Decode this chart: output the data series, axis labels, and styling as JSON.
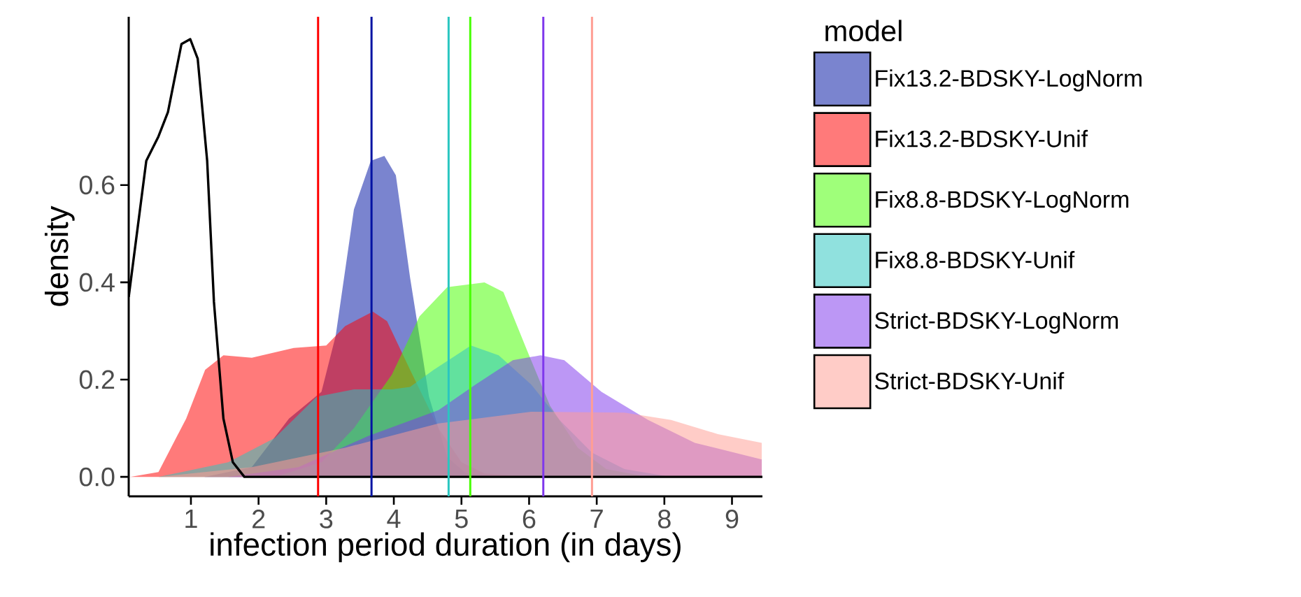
{
  "chart_data": {
    "type": "area",
    "xlabel": "infection period duration (in days)",
    "ylabel": "density",
    "legend_title": "model",
    "legend": "right",
    "grid": false,
    "xlim": [
      0.08,
      9.45
    ],
    "ylim": [
      -0.04,
      0.946
    ],
    "xticks": [
      1,
      2,
      3,
      4,
      5,
      6,
      7,
      8,
      9
    ],
    "yticks": [
      {
        "value": 0,
        "label": "0.0"
      },
      {
        "value": 0.2,
        "label": "0.2"
      },
      {
        "value": 0.4,
        "label": "0.4"
      },
      {
        "value": 0.6,
        "label": "0.6"
      }
    ],
    "series": [
      {
        "name": "Fix13.2-BDSKY-LogNorm",
        "color": "#0013a3",
        "x": [
          1.2,
          1.9,
          2.45,
          2.93,
          3.14,
          3.41,
          3.66,
          3.86,
          4.03,
          4.24,
          4.52,
          4.79,
          5.07,
          5.69
        ],
        "values": [
          0,
          0.02,
          0.12,
          0.175,
          0.29,
          0.55,
          0.65,
          0.66,
          0.62,
          0.41,
          0.165,
          0.04,
          0.007,
          0
        ]
      },
      {
        "name": "Fix13.2-BDSKY-Unif",
        "color": "#ff0000",
        "x": [
          0.1,
          0.52,
          0.93,
          1.21,
          1.48,
          1.9,
          2.52,
          3.0,
          3.28,
          3.69,
          3.9,
          4.24,
          4.66,
          5.0,
          5.34,
          6.03
        ],
        "values": [
          0,
          0.01,
          0.12,
          0.22,
          0.25,
          0.245,
          0.265,
          0.27,
          0.31,
          0.34,
          0.32,
          0.22,
          0.1,
          0.03,
          0.007,
          0
        ]
      },
      {
        "name": "Fix8.8-BDSKY-LogNorm",
        "color": "#47ff00",
        "x": [
          2.24,
          2.93,
          3.41,
          3.97,
          4.38,
          4.79,
          5.34,
          5.62,
          5.97,
          6.31,
          6.72,
          7.14,
          7.76
        ],
        "values": [
          0,
          0.03,
          0.1,
          0.21,
          0.33,
          0.39,
          0.4,
          0.38,
          0.26,
          0.146,
          0.06,
          0.016,
          0
        ]
      },
      {
        "name": "Fix8.8-BDSKY-Unif",
        "color": "#2ac6c0",
        "x": [
          0.52,
          1.55,
          2.24,
          2.86,
          3.41,
          3.97,
          4.24,
          4.59,
          5.14,
          5.55,
          6.03,
          6.45,
          6.93,
          7.41,
          8.1
        ],
        "values": [
          0,
          0.03,
          0.08,
          0.165,
          0.18,
          0.18,
          0.185,
          0.22,
          0.27,
          0.25,
          0.19,
          0.117,
          0.05,
          0.016,
          0
        ]
      },
      {
        "name": "Strict-BDSKY-LogNorm",
        "color": "#7f38ec",
        "x": [
          1.55,
          2.59,
          3.62,
          4.66,
          5.21,
          5.76,
          6.17,
          6.52,
          7.07,
          7.76,
          8.45,
          9.44
        ],
        "values": [
          0,
          0.02,
          0.084,
          0.137,
          0.19,
          0.24,
          0.25,
          0.24,
          0.175,
          0.117,
          0.07,
          0.036
        ]
      },
      {
        "name": "Strict-BDSKY-Unif",
        "color": "#ff9e94",
        "x": [
          0.52,
          1.9,
          3.28,
          4.66,
          6.03,
          7.41,
          8.1,
          8.79,
          9.44
        ],
        "values": [
          0,
          0.02,
          0.06,
          0.11,
          0.134,
          0.132,
          0.117,
          0.088,
          0.07
        ]
      },
      {
        "type": "line",
        "color": "#000000",
        "x": [
          0.08,
          0.34,
          0.52,
          0.66,
          0.86,
          0.99,
          1.1,
          1.24,
          1.34,
          1.48,
          1.62,
          1.79,
          9.45
        ],
        "values": [
          0.37,
          0.65,
          0.7,
          0.75,
          0.89,
          0.9,
          0.86,
          0.65,
          0.36,
          0.12,
          0.03,
          0,
          0
        ]
      }
    ],
    "ref_lines": [
      {
        "axis": "x",
        "value": 2.88,
        "color": "#ff0000"
      },
      {
        "axis": "x",
        "value": 3.67,
        "color": "#0013a3"
      },
      {
        "axis": "x",
        "value": 4.81,
        "color": "#2ac6c0"
      },
      {
        "axis": "x",
        "value": 5.13,
        "color": "#47ff00"
      },
      {
        "axis": "x",
        "value": 6.21,
        "color": "#7f38ec"
      },
      {
        "axis": "x",
        "value": 6.93,
        "color": "#ff9e94"
      }
    ]
  }
}
